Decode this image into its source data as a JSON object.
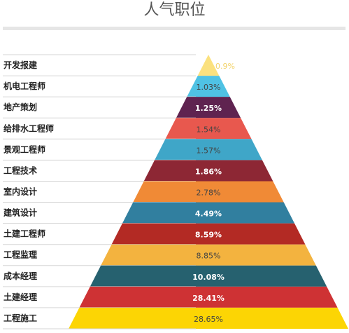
{
  "title": "人气职位",
  "chart_data": {
    "type": "funnel",
    "title": "人气职位",
    "categories": [
      "开发报建",
      "机电工程师",
      "地产策划",
      "给排水工程师",
      "景观工程师",
      "工程技术",
      "室内设计",
      "建筑设计",
      "土建工程师",
      "工程监理",
      "成本经理",
      "土建经理",
      "工程施工"
    ],
    "values": [
      0.9,
      1.03,
      1.25,
      1.54,
      1.57,
      1.86,
      2.78,
      4.49,
      8.59,
      8.85,
      10.08,
      28.41,
      28.65
    ],
    "value_labels": [
      "0.9%",
      "1.03%",
      "1.25%",
      "1.54%",
      "1.57%",
      "1.86%",
      "2.78%",
      "4.49%",
      "8.59%",
      "8.85%",
      "10.08%",
      "28.41%",
      "28.65%"
    ],
    "colors": [
      "#fbe17e",
      "#4fc2e4",
      "#5f2350",
      "#e8584e",
      "#3fa6c8",
      "#8d2734",
      "#f08a36",
      "#317f9f",
      "#b32a24",
      "#f3b33f",
      "#26616f",
      "#ce3234",
      "#fcd504"
    ],
    "label_colors": [
      "#f2d36a",
      "#444444",
      "#ffffff",
      "#444444",
      "#444444",
      "#ffffff",
      "#444444",
      "#ffffff",
      "#ffffff",
      "#444444",
      "#ffffff",
      "#ffffff",
      "#444444"
    ],
    "legend": "left"
  }
}
